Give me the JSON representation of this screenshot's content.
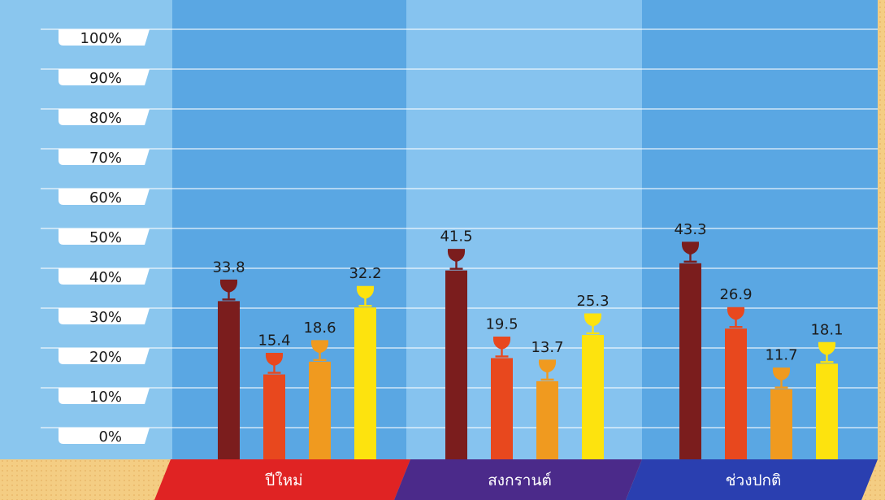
{
  "chart_data": {
    "type": "bar",
    "categories": [
      "ปีใหม่",
      "สงกรานต์",
      "ช่วงปกติ"
    ],
    "series": [
      {
        "values": [
          33.8,
          41.5,
          43.3
        ],
        "color": "#7b1d1d",
        "icon": "wine-glass-icon"
      },
      {
        "values": [
          15.4,
          19.5,
          26.9
        ],
        "color": "#e8481e",
        "icon": "wine-glass-icon"
      },
      {
        "values": [
          18.6,
          13.7,
          11.7
        ],
        "color": "#f09a1f",
        "icon": "wine-glass-icon"
      },
      {
        "values": [
          32.2,
          25.3,
          18.1
        ],
        "color": "#fde30e",
        "icon": "wine-glass-icon"
      }
    ],
    "yticks": [
      "100%",
      "90%",
      "80%",
      "70%",
      "60%",
      "50%",
      "40%",
      "30%",
      "20%",
      "10%",
      "0%"
    ],
    "ylim": [
      0,
      100
    ],
    "grid": true,
    "category_band_colors": [
      "#e02323",
      "#4b2a8a",
      "#2a3fb0"
    ]
  }
}
